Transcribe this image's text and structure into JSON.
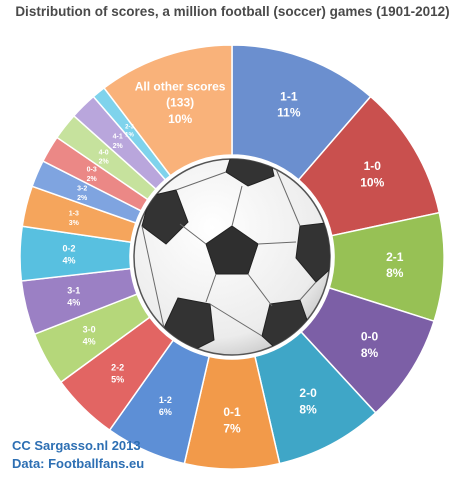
{
  "chart_data": {
    "type": "pie",
    "title": "Distribution of scores, a million football (soccer) games (1901-2012)",
    "slices": [
      {
        "label": "1-1",
        "percent_label": "11%",
        "value": 11,
        "color": "#6b8fcf"
      },
      {
        "label": "1-0",
        "percent_label": "10%",
        "value": 10,
        "color": "#c9504e"
      },
      {
        "label": "2-1",
        "percent_label": "8%",
        "value": 8,
        "color": "#97c155"
      },
      {
        "label": "0-0",
        "percent_label": "8%",
        "value": 8,
        "color": "#7c5fa6"
      },
      {
        "label": "2-0",
        "percent_label": "8%",
        "value": 8,
        "color": "#3fa6c7"
      },
      {
        "label": "0-1",
        "percent_label": "7%",
        "value": 7,
        "color": "#f29a4a"
      },
      {
        "label": "1-2",
        "percent_label": "6%",
        "value": 6,
        "color": "#5d8fd6"
      },
      {
        "label": "2-2",
        "percent_label": "5%",
        "value": 5,
        "color": "#e26563"
      },
      {
        "label": "3-0",
        "percent_label": "4%",
        "value": 4,
        "color": "#b5d77a"
      },
      {
        "label": "3-1",
        "percent_label": "4%",
        "value": 4,
        "color": "#9b80c4"
      },
      {
        "label": "0-2",
        "percent_label": "4%",
        "value": 4,
        "color": "#58c0e0"
      },
      {
        "label": "1-3",
        "percent_label": "3%",
        "value": 3,
        "color": "#f5a55c"
      },
      {
        "label": "3-2",
        "percent_label": "2%",
        "value": 2,
        "color": "#7fa4e0"
      },
      {
        "label": "0-3",
        "percent_label": "2%",
        "value": 2,
        "color": "#eb8886"
      },
      {
        "label": "4-0",
        "percent_label": "2%",
        "value": 2,
        "color": "#c6e29d"
      },
      {
        "label": "4-1",
        "percent_label": "2%",
        "value": 2,
        "color": "#b9a6dc"
      },
      {
        "label": "2-3",
        "percent_label": "1%",
        "value": 1,
        "color": "#7fd3ec"
      },
      {
        "label": "All other scores",
        "sublabel": "(133)",
        "percent_label": "10%",
        "value": 10,
        "color": "#f9b27a"
      }
    ]
  },
  "credits": {
    "line1": "CC Sargasso.nl 2013",
    "line2": "Data: Footballfans.eu"
  },
  "center_image": "soccer-ball-icon"
}
